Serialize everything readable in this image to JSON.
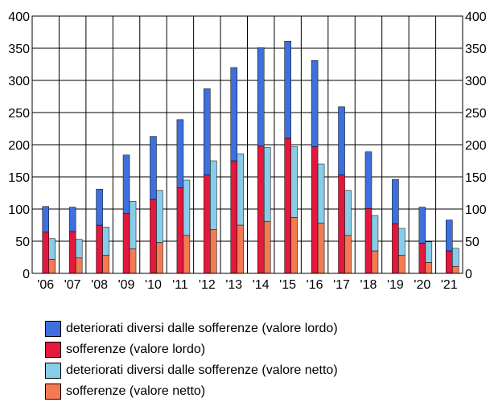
{
  "chart_data": {
    "type": "bar",
    "categories": [
      "'06",
      "'07",
      "'08",
      "'09",
      "'10",
      "'11",
      "'12",
      "'13",
      "'14",
      "'15",
      "'16",
      "'17",
      "'18",
      "'19",
      "'20",
      "'21"
    ],
    "groups": [
      {
        "bar": "gross",
        "stacked_series": [
          {
            "name": "sofferenze (valore lordo)",
            "color": "#e3183c",
            "values": [
              64,
              65,
              75,
              93,
              115,
              133,
              153,
              175,
              198,
              210,
              197,
              153,
              101,
              77,
              47,
              35
            ]
          },
          {
            "name": "deteriorati diversi dalle sofferenze (valore lordo)",
            "color": "#3d6fdf",
            "values": [
              40,
              38,
              56,
              91,
              98,
              106,
              134,
              145,
              153,
              151,
              134,
              106,
              88,
              69,
              56,
              48
            ]
          }
        ]
      },
      {
        "bar": "net",
        "stacked_series": [
          {
            "name": "sofferenze (valore netto)",
            "color": "#f47a52",
            "values": [
              22,
              24,
              28,
              38,
              48,
              59,
              68,
              75,
              81,
              87,
              78,
              59,
              35,
              28,
              17,
              11
            ]
          },
          {
            "name": "deteriorati diversi dalle sofferenze (valore netto)",
            "color": "#87cde9",
            "values": [
              32,
              29,
              44,
              74,
              81,
              86,
              107,
              111,
              115,
              110,
              92,
              70,
              55,
              42,
              32,
              28
            ]
          }
        ]
      }
    ],
    "y_ticks": [
      0,
      50,
      100,
      150,
      200,
      250,
      300,
      350,
      400
    ],
    "ylim": [
      0,
      400
    ],
    "y_axis_left_and_right": true,
    "grid": {
      "horizontal": true,
      "vertical": true
    },
    "legend_position": "bottom-left",
    "legend": [
      {
        "label": "deteriorati diversi dalle sofferenze (valore lordo)",
        "color": "#3d6fdf"
      },
      {
        "label": "sofferenze (valore lordo)",
        "color": "#e3183c"
      },
      {
        "label": "deteriorati diversi dalle sofferenze (valore netto)",
        "color": "#87cde9"
      },
      {
        "label": "sofferenze (valore netto)",
        "color": "#f47a52"
      }
    ]
  }
}
